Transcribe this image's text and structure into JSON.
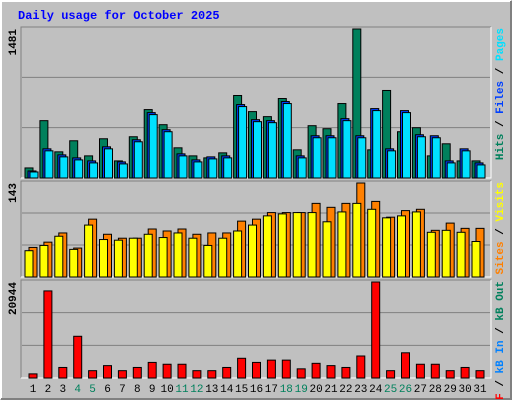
{
  "title": "Daily usage for October 2025",
  "legend_separator": " / ",
  "chart_data": [
    {
      "type": "bar",
      "ylim": [
        0,
        1481
      ],
      "yticks": [
        1481
      ],
      "series": [
        {
          "name": "Hits",
          "color": "#00805c",
          "values": [
            100,
            570,
            260,
            370,
            220,
            390,
            170,
            410,
            680,
            530,
            300,
            220,
            200,
            250,
            820,
            660,
            610,
            790,
            280,
            520,
            490,
            740,
            1481,
            280,
            870,
            460,
            500,
            220,
            340,
            170,
            170
          ]
        },
        {
          "name": "Files",
          "color": "#0040ff",
          "values": [
            70,
            290,
            230,
            200,
            170,
            310,
            160,
            380,
            650,
            480,
            240,
            180,
            210,
            220,
            730,
            580,
            570,
            760,
            220,
            420,
            420,
            590,
            420,
            690,
            290,
            670,
            430,
            420,
            170,
            290,
            150
          ]
        },
        {
          "name": "Pages",
          "color": "#00e0ff",
          "values": [
            60,
            270,
            210,
            180,
            150,
            290,
            140,
            360,
            630,
            460,
            220,
            160,
            190,
            200,
            710,
            560,
            550,
            740,
            200,
            400,
            400,
            570,
            400,
            670,
            270,
            650,
            410,
            400,
            150,
            270,
            130
          ]
        }
      ]
    },
    {
      "type": "bar",
      "ylim": [
        0,
        143
      ],
      "yticks": [
        143
      ],
      "series": [
        {
          "name": "Sites",
          "color": "#ff8000",
          "values": [
            45,
            53,
            67,
            44,
            88,
            65,
            59,
            59,
            73,
            70,
            73,
            65,
            67,
            67,
            85,
            88,
            98,
            98,
            98,
            112,
            106,
            112,
            143,
            115,
            91,
            101,
            103,
            71,
            82,
            74,
            74
          ]
        },
        {
          "name": "Visits",
          "color": "#ffff00",
          "values": [
            40,
            48,
            62,
            42,
            79,
            57,
            56,
            59,
            65,
            60,
            67,
            59,
            48,
            59,
            70,
            79,
            93,
            96,
            98,
            98,
            84,
            99,
            112,
            103,
            90,
            93,
            99,
            68,
            71,
            68,
            54
          ]
        }
      ]
    },
    {
      "type": "bar",
      "ylim": [
        0,
        20944
      ],
      "yticks": [
        20944
      ],
      "categories": [
        "1",
        "2",
        "3",
        "4",
        "5",
        "6",
        "7",
        "8",
        "9",
        "10",
        "11",
        "12",
        "13",
        "14",
        "15",
        "16",
        "17",
        "18",
        "19",
        "20",
        "21",
        "22",
        "23",
        "24",
        "25",
        "26",
        "27",
        "28",
        "29",
        "30",
        "31"
      ],
      "highlight": [
        3,
        4,
        10,
        11,
        17,
        18,
        24,
        25
      ],
      "highlight_color": "#00805c",
      "series": [
        {
          "name": "kB F",
          "color": "#ff0000",
          "values": [
            900,
            19000,
            2300,
            9100,
            1600,
            2700,
            1600,
            2300,
            3400,
            3000,
            3000,
            1600,
            1600,
            2300,
            4300,
            3400,
            3900,
            3900,
            2000,
            3200,
            2700,
            2300,
            4800,
            20944,
            1600,
            5500,
            3000,
            3000,
            1600,
            2300,
            1600
          ]
        },
        {
          "name": "kB In",
          "color": "#0080ff",
          "values": [
            null,
            null,
            null,
            null,
            null,
            null,
            null,
            null,
            null,
            null,
            null,
            null,
            null,
            null,
            null,
            null,
            null,
            null,
            null,
            null,
            null,
            null,
            null,
            null,
            null,
            null,
            null,
            null,
            null,
            null,
            null
          ]
        },
        {
          "name": "kB Out",
          "color": "#00805c",
          "values": [
            null,
            null,
            null,
            null,
            null,
            null,
            null,
            null,
            null,
            null,
            null,
            null,
            null,
            null,
            null,
            null,
            null,
            null,
            null,
            null,
            null,
            null,
            null,
            null,
            null,
            null,
            null,
            null,
            null,
            null,
            null
          ]
        }
      ]
    }
  ]
}
